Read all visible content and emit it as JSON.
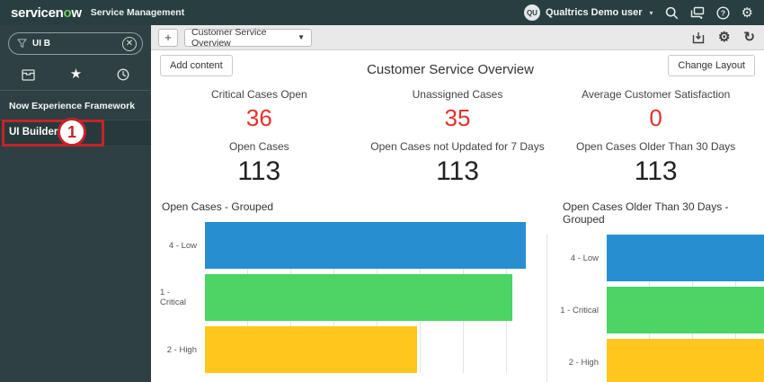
{
  "header": {
    "logo_main": "servicen",
    "logo_o": "o",
    "logo_w": "w",
    "product": "Service Management",
    "user": {
      "initials": "QU",
      "name": "Qualtrics Demo user"
    },
    "icons": [
      "search-icon",
      "chat-icon",
      "help-icon",
      "gear-icon"
    ]
  },
  "sidebar": {
    "search": {
      "value": "UI B"
    },
    "tabs": [
      "all-applications-icon",
      "favorites-icon",
      "history-icon"
    ],
    "section_label": "Now Experience Framework",
    "items": [
      {
        "label": "UI Builder",
        "icon": "launch-arrow-icon"
      }
    ],
    "annotation": {
      "step": "1"
    }
  },
  "toolbar": {
    "page_selector_value": "Customer Service Overview",
    "icons": [
      "save-icon",
      "gear-icon",
      "refresh-icon"
    ]
  },
  "actions": {
    "add_content": "Add content",
    "change_layout": "Change Layout"
  },
  "dashboard": {
    "title": "Customer Service Overview",
    "metrics": [
      {
        "label": "Critical Cases Open",
        "value": "36",
        "color": "red"
      },
      {
        "label": "Unassigned Cases",
        "value": "35",
        "color": "red"
      },
      {
        "label": "Average Customer Satisfaction",
        "value": "0",
        "color": "red"
      },
      {
        "label": "Open Cases",
        "value": "113",
        "color": "dark"
      },
      {
        "label": "Open Cases not Updated for 7 Days",
        "value": "113",
        "color": "dark"
      },
      {
        "label": "Open Cases Older Than 30 Days",
        "value": "113",
        "color": "dark"
      }
    ]
  },
  "chart_data": [
    {
      "type": "bar",
      "orientation": "horizontal",
      "title": "Open Cases - Grouped",
      "categories": [
        "4 - Low",
        "1 - Critical",
        "2 - High"
      ],
      "values": [
        94,
        90,
        62
      ],
      "colors": [
        "#278FD0",
        "#4CD465",
        "#FFC71D"
      ],
      "xlim": [
        0,
        100
      ],
      "grid": true,
      "legend": false,
      "note": "Axis unlabeled; values are estimated % of axis max read from gridlines"
    },
    {
      "type": "bar",
      "orientation": "horizontal",
      "title": "Open Cases Older Than 30 Days - Grouped",
      "categories": [
        "4 - Low",
        "1 - Critical",
        "2 - High"
      ],
      "values": [
        100,
        100,
        100
      ],
      "colors": [
        "#278FD0",
        "#4CD465",
        "#FFC71D"
      ],
      "xlim": [
        0,
        100
      ],
      "grid": true,
      "legend": false,
      "note": "Bars extend past the right edge of the screenshot (clipped); true lengths not visible"
    }
  ],
  "colors": {
    "header_bg": "#293e40",
    "sidebar_bg": "#2f4043",
    "annotation_red": "#c4232b",
    "metric_red": "#e3312a",
    "bar_blue": "#278FD0",
    "bar_green": "#4CD465",
    "bar_yellow": "#FFC71D"
  }
}
